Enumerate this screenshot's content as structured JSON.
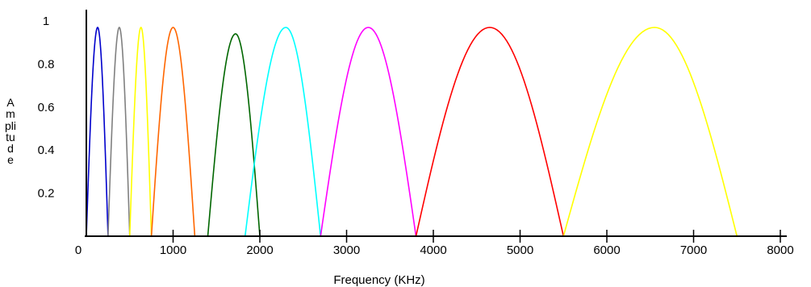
{
  "chart_data": {
    "type": "line",
    "title": "",
    "xlabel": "Frequency (KHz)",
    "ylabel": "Amplitude",
    "xlim": [
      0,
      8000
    ],
    "ylim": [
      0,
      1
    ],
    "x_ticks": [
      0,
      1000,
      2000,
      3000,
      4000,
      5000,
      6000,
      7000,
      8000
    ],
    "y_ticks": [
      0.2,
      0.4,
      0.6,
      0.8,
      1
    ],
    "x_tick_labels": [
      "0",
      "1000",
      "2000",
      "3000",
      "4000",
      "5000",
      "6000",
      "7000",
      "8000"
    ],
    "y_tick_labels": [
      "0.2",
      "0.4",
      "0.6",
      "0.8",
      "1"
    ],
    "grid": false,
    "legend": "none",
    "series": [
      {
        "color": "#0000cc",
        "start": 0,
        "peak": 130,
        "end": 250,
        "peak_value": 0.97
      },
      {
        "color": "#808080",
        "start": 250,
        "peak": 380,
        "end": 500,
        "peak_value": 0.97
      },
      {
        "color": "#ffff00",
        "start": 500,
        "peak": 630,
        "end": 750,
        "peak_value": 0.97
      },
      {
        "color": "#ff6600",
        "start": 750,
        "peak": 1000,
        "end": 1250,
        "peak_value": 0.97
      },
      {
        "color": "#006600",
        "start": 1400,
        "peak": 1720,
        "end": 2000,
        "peak_value": 0.94
      },
      {
        "color": "#00ffff",
        "start": 1830,
        "peak": 2300,
        "end": 2700,
        "peak_value": 0.97
      },
      {
        "color": "#ff00ff",
        "start": 2700,
        "peak": 3250,
        "end": 3800,
        "peak_value": 0.97
      },
      {
        "color": "#ff0000",
        "start": 3800,
        "peak": 4650,
        "end": 5500,
        "peak_value": 0.97
      },
      {
        "color": "#ffff00",
        "start": 5500,
        "peak": 6550,
        "end": 7500,
        "peak_value": 0.97
      }
    ]
  }
}
